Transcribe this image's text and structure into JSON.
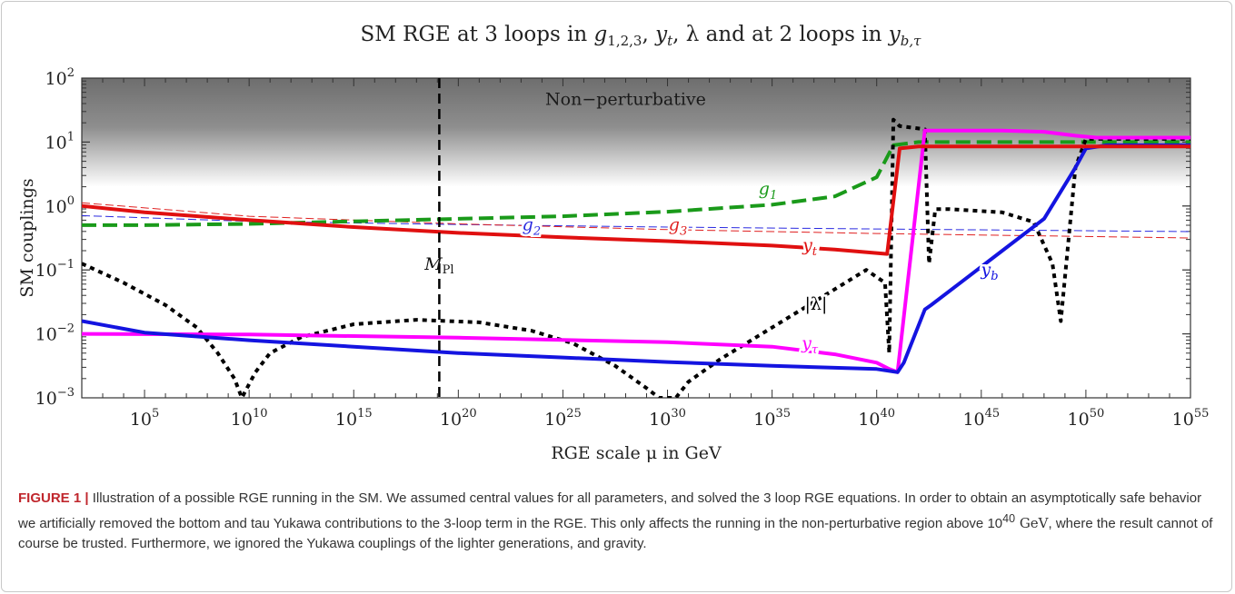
{
  "chart_data": {
    "type": "line",
    "title": {
      "prefix": "SM RGE at 3 loops in ",
      "g": "g",
      "g_sub": "1,2,3",
      "sep1": ", ",
      "yt": "y",
      "yt_sub": "t",
      "sep2": ", ",
      "lambda": "λ",
      "mid": " and at 2 loops in ",
      "ybt": "y",
      "ybt_sub": "b,τ"
    },
    "xlabel": "RGE scale μ in GeV",
    "ylabel": "SM couplings",
    "x_scale": "log10",
    "y_scale": "log10",
    "xlim_log10": [
      2,
      55
    ],
    "ylim_log10": [
      -3,
      2
    ],
    "x_ticks": [
      {
        "base": "10",
        "exp": "5",
        "v": 5
      },
      {
        "base": "10",
        "exp": "10",
        "v": 10
      },
      {
        "base": "10",
        "exp": "15",
        "v": 15
      },
      {
        "base": "10",
        "exp": "20",
        "v": 20
      },
      {
        "base": "10",
        "exp": "25",
        "v": 25
      },
      {
        "base": "10",
        "exp": "30",
        "v": 30
      },
      {
        "base": "10",
        "exp": "35",
        "v": 35
      },
      {
        "base": "10",
        "exp": "40",
        "v": 40
      },
      {
        "base": "10",
        "exp": "45",
        "v": 45
      },
      {
        "base": "10",
        "exp": "50",
        "v": 50
      },
      {
        "base": "10",
        "exp": "55",
        "v": 55
      }
    ],
    "y_ticks": [
      {
        "base": "10",
        "exp": "−3",
        "v": -3
      },
      {
        "base": "10",
        "exp": "−2",
        "v": -2
      },
      {
        "base": "10",
        "exp": "−1",
        "v": -1
      },
      {
        "base": "10",
        "exp": "0",
        "v": 0
      },
      {
        "base": "10",
        "exp": "1",
        "v": 1
      },
      {
        "base": "10",
        "exp": "2",
        "v": 2
      }
    ],
    "region": {
      "label": "Non−perturbative",
      "y_from": 0.3,
      "y_to": 2
    },
    "vline": {
      "x": 19.09,
      "label": "M",
      "label_sub": "Pl",
      "style": "dashed",
      "color": "#000000"
    },
    "series": [
      {
        "key": "g1",
        "label": "g",
        "label_sub": "1",
        "color": "#1a9a1a",
        "style": "dashed",
        "width": 4,
        "points": [
          [
            2,
            -0.3
          ],
          [
            5,
            -0.3
          ],
          [
            10,
            -0.28
          ],
          [
            15,
            -0.24
          ],
          [
            20,
            -0.2
          ],
          [
            25,
            -0.16
          ],
          [
            30,
            -0.09
          ],
          [
            35,
            0.02
          ],
          [
            38,
            0.15
          ],
          [
            40,
            0.45
          ],
          [
            40.8,
            0.95
          ],
          [
            42,
            1.0
          ],
          [
            55,
            1.0
          ]
        ]
      },
      {
        "key": "g2",
        "label": "g",
        "label_sub": "2",
        "color": "#2a2ae0",
        "style": "dashed",
        "width": 1,
        "points": [
          [
            2,
            -0.15
          ],
          [
            10,
            -0.24
          ],
          [
            20,
            -0.29
          ],
          [
            30,
            -0.33
          ],
          [
            40,
            -0.36
          ],
          [
            55,
            -0.4
          ]
        ]
      },
      {
        "key": "g3",
        "label": "g",
        "label_sub": "3",
        "color": "#e02020",
        "style": "dashed",
        "width": 1,
        "points": [
          [
            2,
            0.05
          ],
          [
            10,
            -0.16
          ],
          [
            20,
            -0.28
          ],
          [
            30,
            -0.37
          ],
          [
            40,
            -0.43
          ],
          [
            55,
            -0.5
          ]
        ]
      },
      {
        "key": "yt",
        "label": "y",
        "label_sub": "t",
        "color": "#e01010",
        "style": "solid",
        "width": 4,
        "points": [
          [
            2,
            0.0
          ],
          [
            5,
            -0.1
          ],
          [
            10,
            -0.22
          ],
          [
            15,
            -0.33
          ],
          [
            20,
            -0.42
          ],
          [
            25,
            -0.49
          ],
          [
            30,
            -0.55
          ],
          [
            35,
            -0.62
          ],
          [
            38,
            -0.68
          ],
          [
            40.5,
            -0.75
          ],
          [
            41.1,
            0.9
          ],
          [
            42,
            0.93
          ],
          [
            55,
            0.93
          ]
        ]
      },
      {
        "key": "ytau",
        "label": "y",
        "label_sub": "τ",
        "color": "#ff00ff",
        "style": "solid",
        "width": 4,
        "points": [
          [
            2,
            -2.0
          ],
          [
            10,
            -2.01
          ],
          [
            20,
            -2.06
          ],
          [
            30,
            -2.13
          ],
          [
            35,
            -2.2
          ],
          [
            38,
            -2.32
          ],
          [
            40,
            -2.45
          ],
          [
            40.6,
            -2.55
          ],
          [
            41.0,
            -2.6
          ],
          [
            42.3,
            1.18
          ],
          [
            46,
            1.18
          ],
          [
            48,
            1.16
          ],
          [
            49.5,
            1.1
          ],
          [
            50.5,
            1.07
          ],
          [
            55,
            1.07
          ]
        ]
      },
      {
        "key": "yb",
        "label": "y",
        "label_sub": "b",
        "color": "#1414e0",
        "style": "solid",
        "width": 4,
        "points": [
          [
            2,
            -1.8
          ],
          [
            5,
            -1.98
          ],
          [
            10,
            -2.1
          ],
          [
            15,
            -2.2
          ],
          [
            20,
            -2.3
          ],
          [
            25,
            -2.37
          ],
          [
            30,
            -2.44
          ],
          [
            35,
            -2.5
          ],
          [
            40,
            -2.55
          ],
          [
            41.0,
            -2.6
          ],
          [
            41.3,
            -2.45
          ],
          [
            42.3,
            -1.62
          ],
          [
            42.6,
            -1.55
          ],
          [
            44,
            -1.2
          ],
          [
            46,
            -0.7
          ],
          [
            48,
            -0.2
          ],
          [
            49.5,
            0.6
          ],
          [
            50,
            0.9
          ],
          [
            51,
            0.95
          ],
          [
            55,
            0.95
          ]
        ]
      },
      {
        "key": "lambda",
        "label": "|λ|",
        "label_sub": "",
        "color": "#000000",
        "style": "dotted",
        "width": 4,
        "points": [
          [
            2,
            -0.9
          ],
          [
            4,
            -1.2
          ],
          [
            6,
            -1.55
          ],
          [
            7.5,
            -1.9
          ],
          [
            8.5,
            -2.3
          ],
          [
            9.3,
            -2.7
          ],
          [
            9.65,
            -3.0
          ],
          [
            10.3,
            -2.6
          ],
          [
            11,
            -2.3
          ],
          [
            12.5,
            -2.05
          ],
          [
            15,
            -1.85
          ],
          [
            18,
            -1.78
          ],
          [
            21,
            -1.82
          ],
          [
            23.5,
            -1.95
          ],
          [
            25.5,
            -2.15
          ],
          [
            27.5,
            -2.5
          ],
          [
            29,
            -2.85
          ],
          [
            29.6,
            -3.0
          ],
          [
            30.4,
            -3.0
          ],
          [
            31,
            -2.75
          ],
          [
            32.5,
            -2.4
          ],
          [
            35,
            -1.9
          ],
          [
            37.5,
            -1.4
          ],
          [
            39.5,
            -1.0
          ],
          [
            40.4,
            -1.2
          ],
          [
            40.6,
            -2.3
          ],
          [
            40.8,
            1.35
          ],
          [
            41.1,
            1.25
          ],
          [
            42.3,
            1.2
          ],
          [
            42.5,
            -0.9
          ],
          [
            42.8,
            -0.05
          ],
          [
            43.5,
            -0.05
          ],
          [
            46,
            -0.1
          ],
          [
            47.5,
            -0.25
          ],
          [
            48.4,
            -0.9
          ],
          [
            48.8,
            -1.8
          ],
          [
            49.5,
            0.6
          ],
          [
            50,
            1.05
          ],
          [
            55,
            1.05
          ]
        ]
      }
    ],
    "series_label_pos": {
      "g1": [
        34.8,
        0.18
      ],
      "g2": [
        23.5,
        -0.38
      ],
      "g3": [
        30.5,
        -0.38
      ],
      "yt": [
        36.8,
        -0.7
      ],
      "ytau": [
        36.8,
        -2.23
      ],
      "yb": [
        45.4,
        -1.08
      ],
      "lambda": [
        37.1,
        -1.62
      ]
    }
  },
  "caption": {
    "figure_label": "FIGURE 1 |",
    "text_a": " Illustration of a possible RGE running in the SM. We assumed central values for all parameters, and solved the 3 loop RGE equations. In order to obtain an asymptotically safe behavior we artificially removed the bottom and tau Yukawa contributions to the 3-loop term in the RGE. This only affects the running in the non-perturbative region above 10",
    "exp": "40",
    "unit": " GeV",
    "text_b": ", where the result cannot of course be trusted. Furthermore, we ignored the Yukawa couplings of the lighter generations, and gravity."
  }
}
